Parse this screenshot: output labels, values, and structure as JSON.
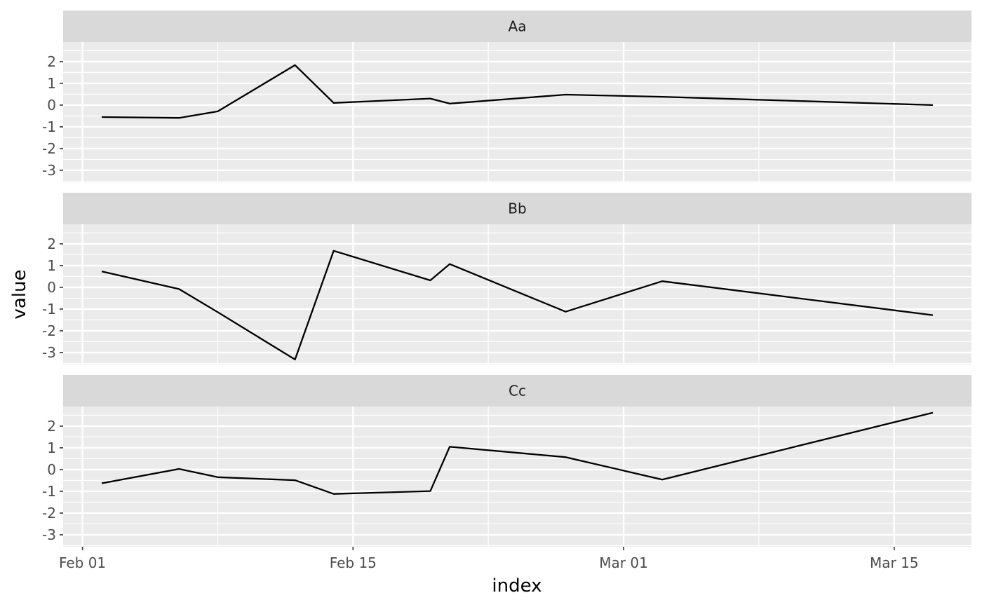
{
  "chart_data": {
    "type": "line",
    "xlabel": "index",
    "ylabel": "value",
    "x_axis_type": "date",
    "x_range": [
      "2010-01-31",
      "2010-03-19"
    ],
    "x_ticks": [
      {
        "date": "2010-02-01",
        "label": "Feb 01"
      },
      {
        "date": "2010-02-15",
        "label": "Feb 15"
      },
      {
        "date": "2010-03-01",
        "label": "Mar 01"
      },
      {
        "date": "2010-03-15",
        "label": "Mar 15"
      }
    ],
    "ylim": [
      -3.55,
      2.9
    ],
    "y_ticks": [
      2,
      1,
      0,
      -1,
      -2,
      -3
    ],
    "y_tick_labels": [
      "2",
      "1",
      "0",
      "-1",
      "-2",
      "-3"
    ],
    "grid": true,
    "facets": [
      "Aa",
      "Bb",
      "Cc"
    ],
    "x": [
      "2010-02-02",
      "2010-02-06",
      "2010-02-08",
      "2010-02-12",
      "2010-02-14",
      "2010-02-19",
      "2010-02-20",
      "2010-02-26",
      "2010-03-03",
      "2010-03-17"
    ],
    "series": [
      {
        "name": "Aa",
        "values": [
          -0.55,
          -0.59,
          -0.29,
          1.84,
          0.1,
          0.3,
          0.07,
          0.48,
          0.38,
          0.0
        ]
      },
      {
        "name": "Bb",
        "values": [
          0.73,
          -0.08,
          -1.14,
          -3.32,
          1.68,
          0.32,
          1.07,
          -1.12,
          0.28,
          -1.28
        ]
      },
      {
        "name": "Cc",
        "values": [
          -0.63,
          0.03,
          -0.35,
          -0.49,
          -1.12,
          -0.99,
          1.05,
          0.57,
          -0.46,
          2.62
        ]
      }
    ]
  }
}
